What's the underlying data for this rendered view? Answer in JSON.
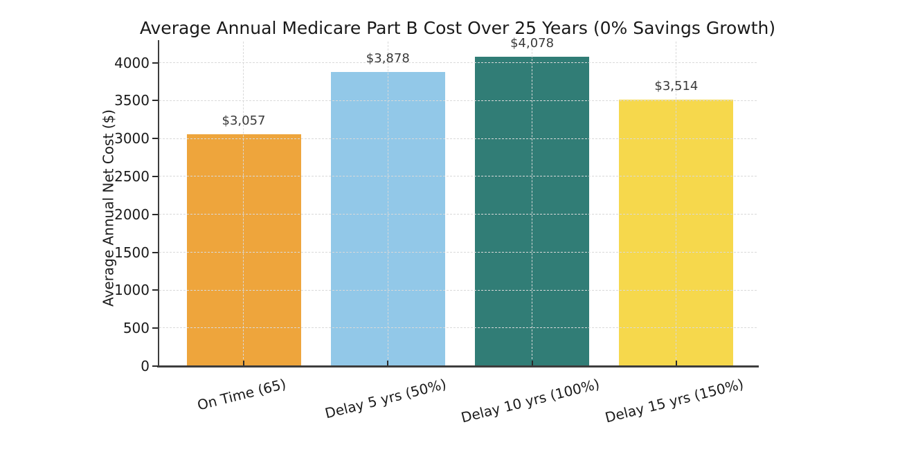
{
  "chart_data": {
    "type": "bar",
    "title": "Average Annual Medicare Part B Cost Over 25 Years (0% Savings Growth)",
    "ylabel": "Average Annual Net Cost ($)",
    "xlabel": "",
    "categories": [
      "On Time (65)",
      "Delay 5 yrs (50%)",
      "Delay 10 yrs (100%)",
      "Delay 15 yrs (150%)"
    ],
    "values": [
      3057,
      3878,
      4078,
      3514
    ],
    "value_labels": [
      "$3,057",
      "$3,878",
      "$4,078",
      "$3,514"
    ],
    "bar_colors": [
      "#EEA53C",
      "#92C8E8",
      "#317D76",
      "#F6D84C"
    ],
    "ylim": [
      0,
      4280
    ],
    "yticks": [
      0,
      500,
      1000,
      1500,
      2000,
      2500,
      3000,
      3500,
      4000
    ],
    "xtick_rotation_deg": 14,
    "grid": "dashed horizontal and vertical gridlines drawn over bars",
    "legend": "none",
    "style": {
      "background": "#ffffff",
      "grid_color": "#d9d9d9",
      "axis_spine_color": "#3d3d3d",
      "tick_color": "#2b2b2b",
      "tick_label_color": "#1a1a1a",
      "title_color": "#1a1a1a",
      "value_label_color": "#3a3a3a"
    }
  }
}
